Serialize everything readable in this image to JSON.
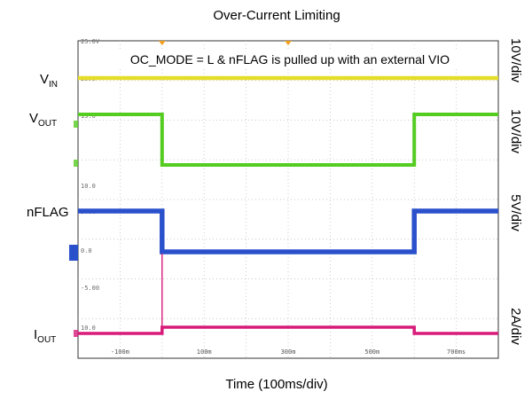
{
  "chart_data": {
    "type": "line",
    "title": "Over-Current Limiting",
    "xlabel": "Time (100ms/div)",
    "annotation": "OC_MODE = L & nFLAG is pulled up with an external VIO",
    "x_tick_labels": [
      "-100m",
      "100m",
      "300m",
      "500m",
      "700ms"
    ],
    "x_tick_values": [
      -100,
      100,
      300,
      500,
      700
    ],
    "x_unit": "ms",
    "xlim": [
      -200,
      800
    ],
    "screen_labels": [
      "25.0V",
      "20.0",
      "15.0",
      "10.0",
      "5.00",
      "0.0",
      "-5.00",
      "10.0"
    ],
    "grid": true,
    "background": "#ffffff",
    "grid_color": "#b8b8c4",
    "trigger_marker_color": "#f0a020",
    "scale_labels": [
      "10V/div",
      "10V/div",
      "5V/div",
      "2A/div"
    ],
    "series": [
      {
        "name": "V",
        "sub": "IN",
        "color": "#e6dc2a",
        "scale": "10V/div",
        "x": [
          -200,
          800
        ],
        "y": [
          20,
          20
        ]
      },
      {
        "name": "V",
        "sub": "OUT",
        "color": "#55cc22",
        "scale": "10V/div",
        "x": [
          -200,
          0,
          0,
          600,
          600,
          800
        ],
        "y": [
          15,
          15,
          10,
          10,
          15,
          15
        ]
      },
      {
        "name": "nFLAG",
        "sub": "",
        "color": "#2a50cc",
        "scale": "5V/div",
        "x": [
          -200,
          0,
          0,
          600,
          600,
          800
        ],
        "y": [
          5,
          5,
          0,
          0,
          5,
          5
        ]
      },
      {
        "name": "I",
        "sub": "OUT",
        "color": "#d81b7a",
        "scale": "2A/div",
        "x": [
          -200,
          0,
          0,
          600,
          600,
          800
        ],
        "y": [
          0,
          0,
          1,
          1,
          0,
          0
        ]
      }
    ]
  }
}
